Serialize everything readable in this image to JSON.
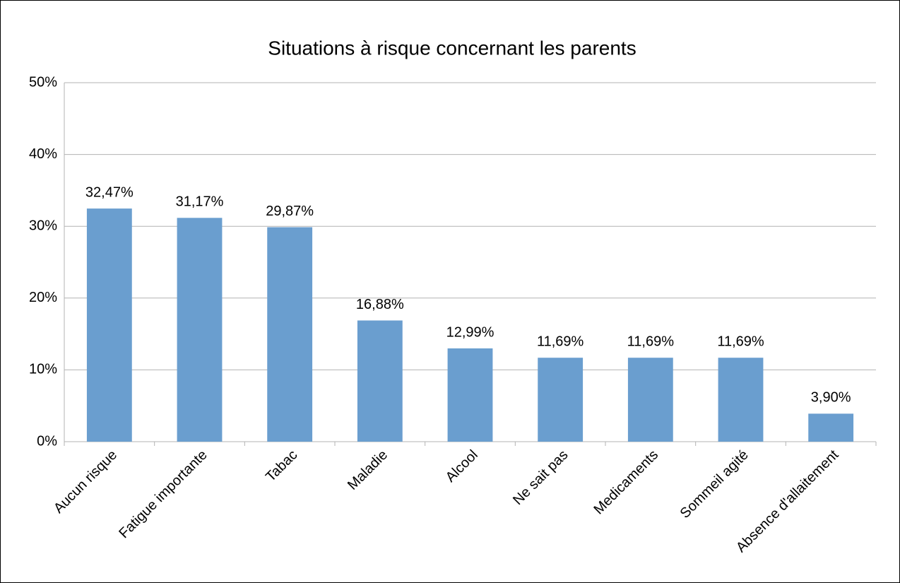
{
  "chart_data": {
    "type": "bar",
    "title": "Situations à risque concernant les parents",
    "categories": [
      "Aucun risque",
      "Fatigue importante",
      "Tabac",
      "Maladie",
      "Alcool",
      "Ne sait pas",
      "Medicaments",
      "Sommeil agité",
      "Absence d'allaitement"
    ],
    "values": [
      32.47,
      31.17,
      29.87,
      16.88,
      12.99,
      11.69,
      11.69,
      11.69,
      3.9
    ],
    "value_labels": [
      "32,47%",
      "31,17%",
      "29,87%",
      "16,88%",
      "12,99%",
      "11,69%",
      "11,69%",
      "11,69%",
      "3,90%"
    ],
    "color": "#6a9ecf",
    "ylim": [
      0,
      50
    ],
    "yticks": [
      {
        "value": 0,
        "label": "0%"
      },
      {
        "value": 10,
        "label": "10%"
      },
      {
        "value": 20,
        "label": "20%"
      },
      {
        "value": 30,
        "label": "30%"
      },
      {
        "value": 40,
        "label": "40%"
      },
      {
        "value": 50,
        "label": "50%"
      }
    ],
    "grid": true
  }
}
